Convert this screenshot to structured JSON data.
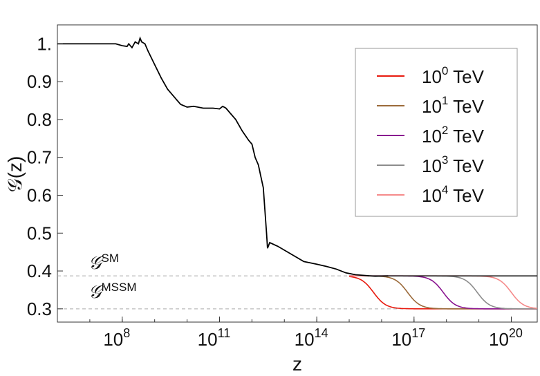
{
  "chart_data": {
    "type": "line",
    "xlabel": "z",
    "ylabel": "𝒢(z)",
    "x_scale": "log10",
    "xlim_log10": [
      6.0,
      20.8
    ],
    "ylim": [
      0.265,
      1.05
    ],
    "x_ticks": [
      {
        "log10": 8,
        "base": "10",
        "exp": "8"
      },
      {
        "log10": 11,
        "base": "10",
        "exp": "11"
      },
      {
        "log10": 14,
        "base": "10",
        "exp": "14"
      },
      {
        "log10": 17,
        "base": "10",
        "exp": "17"
      },
      {
        "log10": 20,
        "base": "10",
        "exp": "20"
      }
    ],
    "y_ticks": [
      {
        "value": 0.3,
        "label": "0.3"
      },
      {
        "value": 0.4,
        "label": "0.4"
      },
      {
        "value": 0.5,
        "label": "0.5"
      },
      {
        "value": 0.6,
        "label": "0.6"
      },
      {
        "value": 0.7,
        "label": "0.7"
      },
      {
        "value": 0.8,
        "label": "0.8"
      },
      {
        "value": 0.9,
        "label": "0.9"
      },
      {
        "value": 1.0,
        "label": "1."
      }
    ],
    "reference_lines": [
      {
        "value": 0.387,
        "label_main": "𝒢",
        "label_sup": "SM"
      },
      {
        "value": 0.3,
        "label_main": "𝒢",
        "label_sup": "MSSM"
      }
    ],
    "common_curve": {
      "color": "#000000",
      "points": [
        [
          6.0,
          1.0
        ],
        [
          7.0,
          1.0
        ],
        [
          7.8,
          1.0
        ],
        [
          8.0,
          0.995
        ],
        [
          8.15,
          0.993
        ],
        [
          8.2,
          1.0
        ],
        [
          8.3,
          0.99
        ],
        [
          8.4,
          1.005
        ],
        [
          8.5,
          1.0
        ],
        [
          8.55,
          1.015
        ],
        [
          8.6,
          1.005
        ],
        [
          8.7,
          1.0
        ],
        [
          8.8,
          0.98
        ],
        [
          9.0,
          0.945
        ],
        [
          9.2,
          0.91
        ],
        [
          9.4,
          0.88
        ],
        [
          9.6,
          0.86
        ],
        [
          9.8,
          0.84
        ],
        [
          10.0,
          0.833
        ],
        [
          10.2,
          0.835
        ],
        [
          10.5,
          0.83
        ],
        [
          10.8,
          0.83
        ],
        [
          11.0,
          0.828
        ],
        [
          11.1,
          0.835
        ],
        [
          11.2,
          0.83
        ],
        [
          11.3,
          0.82
        ],
        [
          11.5,
          0.8
        ],
        [
          11.7,
          0.77
        ],
        [
          11.9,
          0.745
        ],
        [
          12.0,
          0.735
        ],
        [
          12.1,
          0.7
        ],
        [
          12.2,
          0.68
        ],
        [
          12.3,
          0.64
        ],
        [
          12.35,
          0.62
        ],
        [
          12.45,
          0.5
        ],
        [
          12.48,
          0.46
        ],
        [
          12.55,
          0.475
        ],
        [
          12.8,
          0.465
        ],
        [
          13.0,
          0.455
        ],
        [
          13.3,
          0.44
        ],
        [
          13.6,
          0.425
        ],
        [
          14.0,
          0.418
        ],
        [
          14.3,
          0.412
        ],
        [
          14.6,
          0.405
        ],
        [
          14.9,
          0.395
        ],
        [
          15.2,
          0.39
        ],
        [
          15.5,
          0.388
        ],
        [
          15.8,
          0.386
        ],
        [
          16.2,
          0.387
        ]
      ]
    },
    "series": [
      {
        "name_base": "10",
        "name_exp": "0",
        "name_unit": "TeV",
        "color": "#e8190e",
        "points": [
          [
            15.0,
            0.39
          ],
          [
            15.2,
            0.387
          ],
          [
            20.8,
            0.387
          ]
        ],
        "step_log10": 15.75
      },
      {
        "name_base": "10",
        "name_exp": "1",
        "name_unit": "TeV",
        "color": "#9b6a3a",
        "points": [
          [
            15.2,
            0.387
          ],
          [
            20.8,
            0.387
          ]
        ],
        "step_log10": 16.8
      },
      {
        "name_base": "10",
        "name_exp": "2",
        "name_unit": "TeV",
        "color": "#8a1490",
        "points": [
          [
            15.2,
            0.387
          ],
          [
            20.8,
            0.387
          ]
        ],
        "step_log10": 17.9
      },
      {
        "name_base": "10",
        "name_exp": "3",
        "name_unit": "TeV",
        "color": "#8c8c8c",
        "points": [
          [
            15.2,
            0.387
          ],
          [
            20.8,
            0.387
          ]
        ],
        "step_log10": 18.95
      },
      {
        "name_base": "10",
        "name_exp": "4",
        "name_unit": "TeV",
        "color": "#f58a8a",
        "points": [
          [
            15.2,
            0.387
          ],
          [
            20.8,
            0.387
          ]
        ],
        "step_log10": 20.0
      }
    ],
    "legend_position": "top-right",
    "grid": false
  }
}
